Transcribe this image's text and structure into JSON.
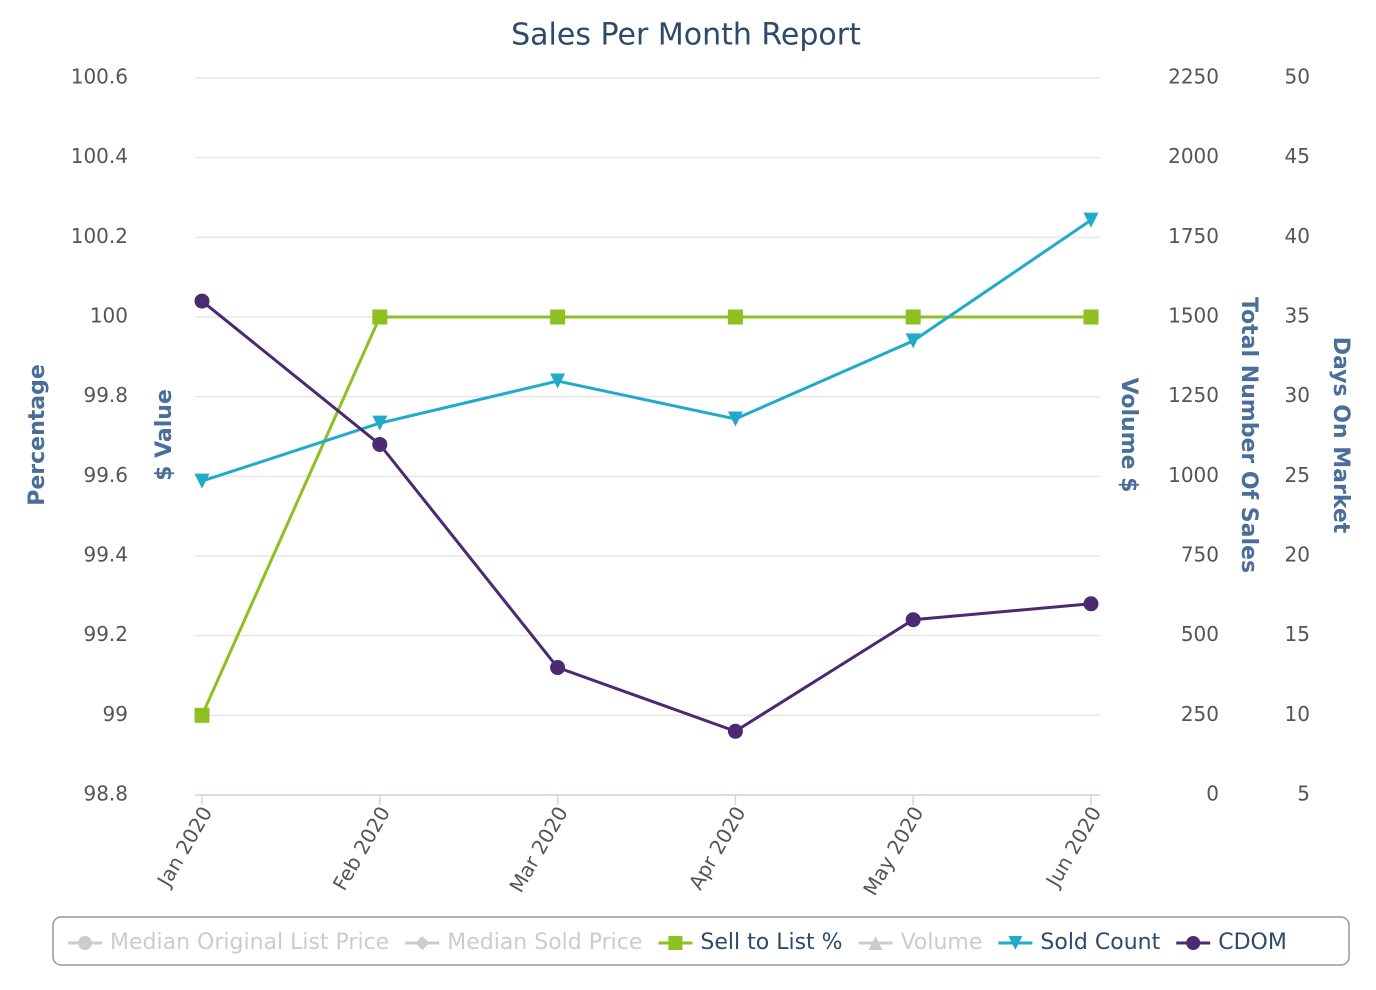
{
  "chart_data": {
    "type": "line",
    "title": "Sales Per Month Report",
    "categories": [
      "Jan 2020",
      "Feb 2020",
      "Mar 2020",
      "Apr 2020",
      "May 2020",
      "Jun 2020"
    ],
    "ylabel": "Percentage",
    "ylim": [
      98.8,
      100.6
    ],
    "yticks": [
      98.8,
      99,
      99.2,
      99.4,
      99.6,
      99.8,
      100,
      100.2,
      100.4,
      100.6
    ],
    "y2label": "Total Number Of Sales",
    "y2lim": [
      0,
      2250
    ],
    "y2ticks": [
      0,
      250,
      500,
      750,
      1000,
      1250,
      1500,
      1750,
      2000,
      2250
    ],
    "y3label": "Days On Market",
    "y3lim": [
      5,
      50
    ],
    "y3ticks": [
      5,
      10,
      15,
      20,
      25,
      30,
      35,
      40,
      45,
      50
    ],
    "hidden_axis_labels": [
      "$ Value",
      "Volume $"
    ],
    "grid": true,
    "legend": "bottom",
    "series": [
      {
        "name": "Median Original List Price",
        "visible": false,
        "marker": "circle"
      },
      {
        "name": "Median Sold Price",
        "visible": false,
        "marker": "diamond"
      },
      {
        "name": "Sell to List %",
        "color": "#8dc021",
        "marker": "square",
        "axis": "y",
        "values": [
          99,
          100,
          100,
          100,
          100,
          100
        ]
      },
      {
        "name": "Volume",
        "visible": false,
        "marker": "triangle"
      },
      {
        "name": "Sold Count",
        "color": "#1fabc9",
        "marker": "triangle-down",
        "axis": "y2",
        "values": [
          985,
          1167,
          1299,
          1180,
          1425,
          1804
        ]
      },
      {
        "name": "CDOM",
        "color": "#4b2a72",
        "marker": "circle",
        "axis": "y3",
        "values": [
          36,
          27,
          13,
          9,
          16,
          17
        ]
      }
    ]
  }
}
